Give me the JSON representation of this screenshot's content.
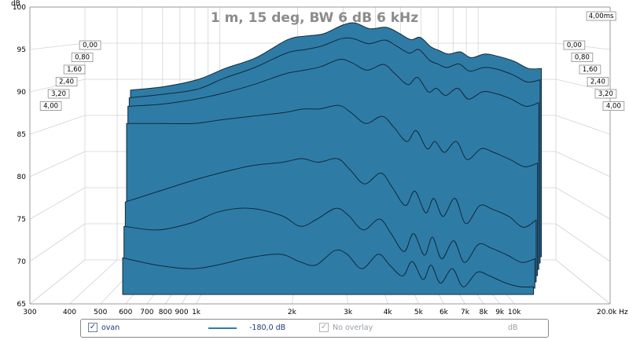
{
  "chart_data": {
    "type": "area",
    "title": "1 m, 15 deg, BW 6 dB 6 kHz",
    "ylabel": "dB",
    "xscale": "log",
    "xlim": [
      300,
      20000
    ],
    "ylim": [
      65,
      100
    ],
    "x_ticks": [
      {
        "v": 300,
        "label": "300"
      },
      {
        "v": 400,
        "label": "400"
      },
      {
        "v": 500,
        "label": "500"
      },
      {
        "v": 600,
        "label": "600"
      },
      {
        "v": 700,
        "label": "700"
      },
      {
        "v": 800,
        "label": "800"
      },
      {
        "v": 900,
        "label": "900"
      },
      {
        "v": 1000,
        "label": "1k"
      },
      {
        "v": 2000,
        "label": "2k"
      },
      {
        "v": 3000,
        "label": "3k"
      },
      {
        "v": 4000,
        "label": "4k"
      },
      {
        "v": 5000,
        "label": "5k"
      },
      {
        "v": 6000,
        "label": "6k"
      },
      {
        "v": 7000,
        "label": "7k"
      },
      {
        "v": 8000,
        "label": "8k"
      },
      {
        "v": 9000,
        "label": "9k"
      },
      {
        "v": 10000,
        "label": "10k"
      },
      {
        "v": 20000,
        "label": "20,0k Hz"
      }
    ],
    "y_ticks": [
      65,
      70,
      75,
      80,
      85,
      90,
      95,
      100
    ],
    "time_axis_label": "4,00ms",
    "time_slices_left": [
      "0,00",
      "0,80",
      "1,60",
      "2,40",
      "3,20",
      "4,00"
    ],
    "time_slices_right": [
      "0,00",
      "0,80",
      "1,60",
      "2,40",
      "3,20",
      "4,00"
    ],
    "fill_color": "#2e7ca6",
    "line_color": "#14283a",
    "grid": true,
    "series": [
      {
        "freqs": [
          450,
          600,
          800,
          1000,
          1300,
          1700,
          2000,
          2300,
          2700,
          3000,
          3400,
          3900,
          4300,
          4800,
          5200,
          5700,
          6100,
          6600,
          7300,
          8000,
          9000,
          10000,
          11500,
          13000,
          14500
        ],
        "values": [
          88.5,
          89.0,
          90.0,
          91.5,
          93.0,
          95.5,
          96.0,
          96.3,
          97.5,
          97.8,
          97.0,
          97.2,
          96.5,
          95.5,
          95.8,
          94.5,
          94.0,
          93.5,
          93.8,
          93.0,
          93.5,
          93.2,
          92.5,
          91.5,
          91.5
        ]
      },
      {
        "freqs": [
          450,
          600,
          800,
          1000,
          1300,
          1700,
          2000,
          2300,
          2700,
          3000,
          3400,
          3900,
          4300,
          4800,
          5200,
          5700,
          6100,
          6600,
          7300,
          8000,
          9000,
          10000,
          11500,
          13000,
          14500
        ],
        "values": [
          88.3,
          88.8,
          89.5,
          91.0,
          92.5,
          94.5,
          95.0,
          95.5,
          96.5,
          96.5,
          95.8,
          96.3,
          95.5,
          94.5,
          95.0,
          93.5,
          93.0,
          92.5,
          93.0,
          92.0,
          92.5,
          92.3,
          91.5,
          90.5,
          90.8
        ]
      },
      {
        "freqs": [
          450,
          600,
          800,
          1000,
          1300,
          1700,
          2000,
          2300,
          2700,
          3000,
          3400,
          3900,
          4300,
          4800,
          5200,
          5700,
          6100,
          6600,
          7300,
          8000,
          9000,
          10000,
          11500,
          13000,
          14500
        ],
        "values": [
          88.0,
          88.3,
          89.0,
          89.8,
          91.0,
          92.5,
          93.0,
          93.5,
          94.5,
          94.0,
          93.0,
          93.8,
          92.5,
          91.0,
          92.0,
          90.0,
          90.5,
          89.5,
          90.5,
          89.0,
          90.0,
          89.8,
          89.0,
          88.0,
          88.5
        ]
      },
      {
        "freqs": [
          450,
          600,
          800,
          1000,
          1300,
          1700,
          2000,
          2300,
          2700,
          3000,
          3400,
          3900,
          4300,
          4800,
          5200,
          5700,
          6100,
          6600,
          7300,
          8000,
          9000,
          10000,
          11500,
          13000,
          14500
        ],
        "values": [
          86.5,
          86.5,
          86.5,
          87.0,
          87.5,
          88.0,
          88.5,
          88.5,
          89.0,
          88.0,
          86.5,
          87.5,
          86.0,
          84.0,
          85.5,
          83.0,
          84.0,
          82.5,
          84.0,
          81.5,
          83.0,
          82.5,
          81.5,
          80.5,
          81.0
        ]
      },
      {
        "freqs": [
          450,
          600,
          800,
          1000,
          1300,
          1700,
          2000,
          2300,
          2700,
          3000,
          3400,
          3900,
          4300,
          4800,
          5200,
          5700,
          6100,
          6600,
          7300,
          8000,
          9000,
          10000,
          11500,
          13000,
          14500
        ],
        "values": [
          76.5,
          78.0,
          79.5,
          80.5,
          81.5,
          82.0,
          82.5,
          82.0,
          82.5,
          81.0,
          79.0,
          80.5,
          78.5,
          76.0,
          78.0,
          75.0,
          77.0,
          74.5,
          77.0,
          73.5,
          76.0,
          75.5,
          74.5,
          73.0,
          74.0
        ]
      },
      {
        "freqs": [
          450,
          600,
          800,
          1000,
          1300,
          1700,
          2000,
          2300,
          2700,
          3000,
          3400,
          3900,
          4300,
          4800,
          5200,
          5700,
          6100,
          6600,
          7300,
          8000,
          9000,
          10000,
          11500,
          13000,
          14500
        ],
        "values": [
          74.0,
          73.5,
          74.5,
          76.0,
          76.5,
          75.5,
          74.0,
          75.0,
          76.5,
          75.5,
          73.5,
          75.0,
          73.0,
          70.5,
          73.0,
          70.0,
          72.5,
          69.5,
          72.0,
          69.0,
          71.5,
          71.0,
          70.0,
          69.0,
          69.5
        ]
      },
      {
        "freqs": [
          450,
          600,
          800,
          1000,
          1300,
          1700,
          2000,
          2300,
          2700,
          3000,
          3400,
          3900,
          4300,
          4800,
          5200,
          5700,
          6100,
          6600,
          7300,
          8000,
          9000,
          10000,
          11500,
          13000,
          14500
        ],
        "values": [
          70.5,
          69.5,
          69.0,
          69.5,
          70.5,
          71.0,
          70.0,
          69.5,
          71.5,
          71.0,
          69.0,
          71.0,
          69.5,
          68.0,
          70.0,
          67.5,
          69.5,
          67.0,
          69.0,
          66.5,
          68.5,
          68.0,
          67.0,
          66.5,
          66.5
        ]
      }
    ]
  },
  "legend": {
    "series_name": "ovan",
    "series_value": "-180,0 dB",
    "overlay_label": "No overlay",
    "overlay_unit": "dB",
    "line_color": "#2e7ca6"
  }
}
